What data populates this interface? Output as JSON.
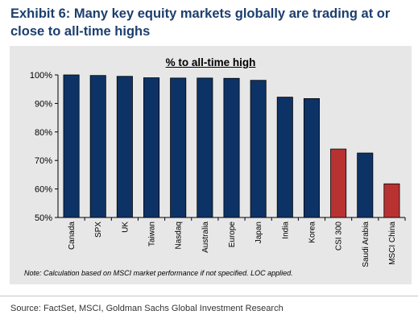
{
  "header": {
    "title": "Exhibit 6: Many key equity markets globally are trading at or close to all-time highs"
  },
  "footer": {
    "source": "Source: FactSet, MSCI, Goldman Sachs Global Investment Research"
  },
  "colors": {
    "default_bar": "#0d3366",
    "highlight_bar": "#b83232",
    "panel_background": "#e7e7e7",
    "title": "#1c3f6e"
  },
  "chart_data": {
    "type": "bar",
    "title": "% to all-time high",
    "note": "Note: Calculation based on MSCI market performance if not specified. LOC applied.",
    "categories": [
      "Canada",
      "SPX",
      "UK",
      "Taiwan",
      "Nasdaq",
      "Australia",
      "Europe",
      "Japan",
      "India",
      "Korea",
      "CSI 300",
      "Saudi Arabia",
      "MSCI China"
    ],
    "series": [
      {
        "values": [
          100,
          99.8,
          99.5,
          99,
          98.9,
          98.9,
          98.8,
          98.1,
          92.2,
          91.7,
          74,
          72.6,
          61.8
        ]
      }
    ],
    "highlighted_categories": [
      "CSI 300",
      "MSCI China"
    ],
    "ylim": [
      50,
      100
    ],
    "yticks": [
      50,
      60,
      70,
      80,
      90,
      100
    ],
    "ytick_labels": [
      "50%",
      "60%",
      "70%",
      "80%",
      "90%",
      "100%"
    ],
    "xlabel": "",
    "ylabel": "",
    "grid": false,
    "legend": "none"
  }
}
